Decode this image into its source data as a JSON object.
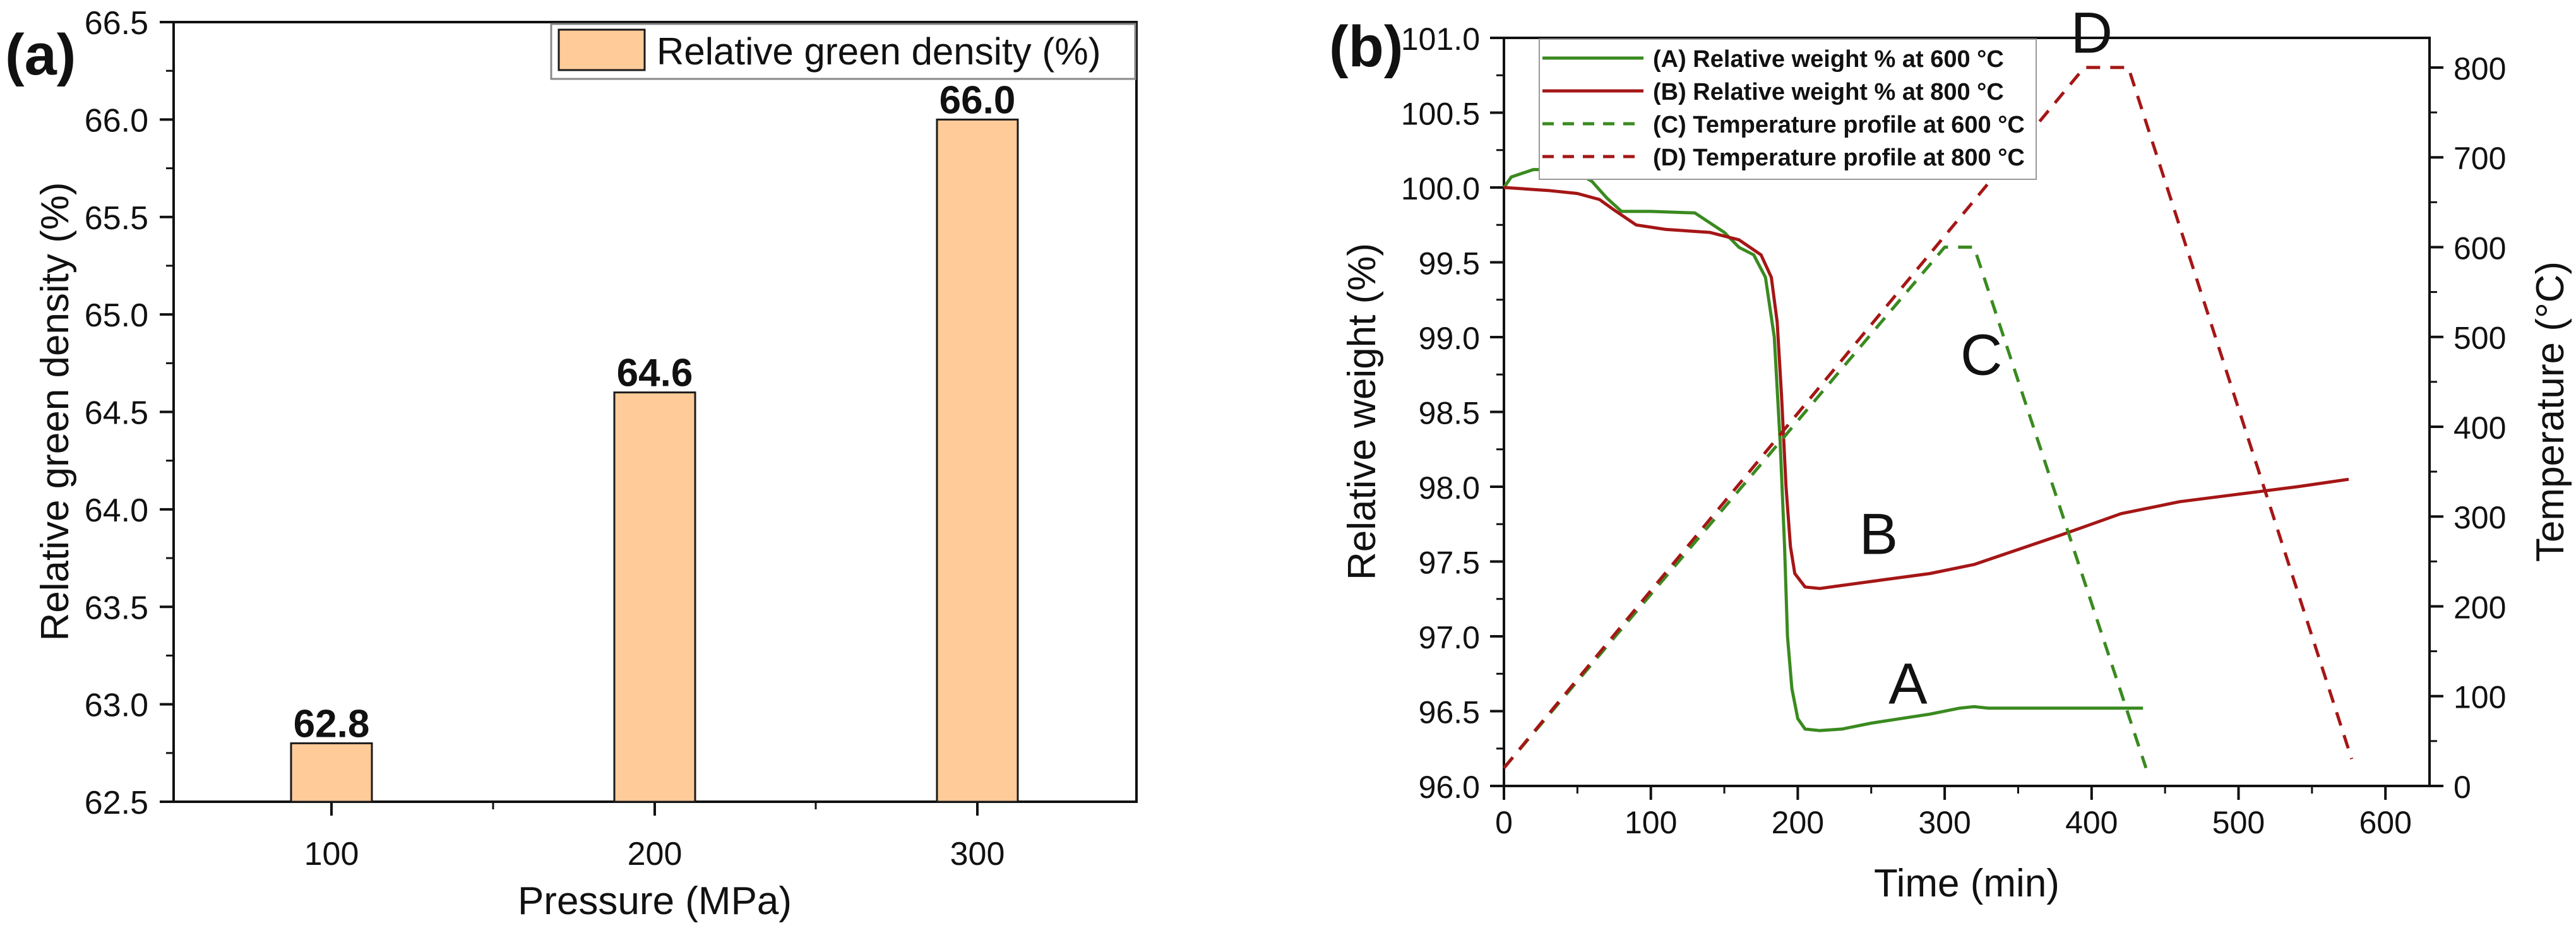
{
  "panels": {
    "a": {
      "label": "(a)"
    },
    "b": {
      "label": "(b)"
    }
  },
  "colors": {
    "bar_fill": "#FFCC99",
    "bar_stroke": "#1a1a1a",
    "green": "#3A8A1F",
    "red": "#A51616"
  },
  "chart_data": [
    {
      "type": "bar",
      "panel": "(a)",
      "categories": [
        "100",
        "200",
        "300"
      ],
      "values": [
        62.8,
        64.6,
        66.0
      ],
      "data_labels": [
        "62.8",
        "64.6",
        "66.0"
      ],
      "xlabel": "Pressure (MPa)",
      "ylabel": "Relative green density (%)",
      "ylim": [
        62.5,
        66.5
      ],
      "yticks": [
        "62.5",
        "63.0",
        "63.5",
        "64.0",
        "64.5",
        "65.0",
        "65.5",
        "66.0",
        "66.5"
      ],
      "legend": {
        "position": "top-right",
        "entries": [
          "Relative green density (%)"
        ]
      },
      "grid": false
    },
    {
      "type": "line",
      "panel": "(b)",
      "xlabel": "Time (min)",
      "ylabel": "Relative weight (%)",
      "y2label": "Temperature (°C)",
      "xlim": [
        0,
        630
      ],
      "ylim": [
        96.0,
        101.0
      ],
      "y2lim": [
        0,
        833
      ],
      "xticks": [
        "0",
        "100",
        "200",
        "300",
        "400",
        "500",
        "600"
      ],
      "yticks": [
        "96.0",
        "96.5",
        "97.0",
        "97.5",
        "98.0",
        "98.5",
        "99.0",
        "99.5",
        "100.0",
        "100.5",
        "101.0"
      ],
      "y2ticks": [
        "0",
        "100",
        "200",
        "300",
        "400",
        "500",
        "600",
        "700",
        "800"
      ],
      "legend": {
        "position": "top-left"
      },
      "grid": false,
      "series": [
        {
          "name": "(A) Relative weight % at 600 °C",
          "axis": "left",
          "style": "solid",
          "color": "#3A8A1F",
          "tag": "A",
          "x": [
            0,
            5,
            20,
            35,
            50,
            60,
            70,
            80,
            100,
            130,
            150,
            160,
            170,
            178,
            184,
            188,
            191,
            193,
            196,
            200,
            205,
            215,
            230,
            250,
            270,
            290,
            310,
            320,
            330,
            340,
            380,
            420,
            435
          ],
          "y": [
            100.0,
            100.07,
            100.12,
            100.12,
            100.1,
            100.04,
            99.93,
            99.84,
            99.84,
            99.83,
            99.7,
            99.6,
            99.55,
            99.4,
            99.0,
            98.3,
            97.6,
            97.0,
            96.65,
            96.45,
            96.38,
            96.37,
            96.38,
            96.42,
            96.45,
            96.48,
            96.52,
            96.53,
            96.52,
            96.52,
            96.52,
            96.52,
            96.52
          ]
        },
        {
          "name": "(B) Relative weight % at 800 °C",
          "axis": "left",
          "style": "solid",
          "color": "#A51616",
          "tag": "B",
          "x": [
            0,
            30,
            50,
            65,
            75,
            90,
            110,
            140,
            160,
            175,
            182,
            186,
            189,
            192,
            195,
            198,
            205,
            215,
            230,
            260,
            290,
            320,
            350,
            380,
            420,
            460,
            500,
            540,
            575
          ],
          "y": [
            100.0,
            99.98,
            99.96,
            99.92,
            99.85,
            99.75,
            99.72,
            99.7,
            99.65,
            99.55,
            99.4,
            99.1,
            98.6,
            98.0,
            97.6,
            97.42,
            97.33,
            97.32,
            97.34,
            97.38,
            97.42,
            97.48,
            97.58,
            97.68,
            97.82,
            97.9,
            97.95,
            98.0,
            98.05
          ]
        },
        {
          "name": "(C) Temperature profile at 600 °C",
          "axis": "right",
          "style": "dashed",
          "color": "#3A8A1F",
          "tag": "C",
          "x": [
            0,
            300,
            320,
            437
          ],
          "y": [
            20,
            600,
            600,
            20
          ]
        },
        {
          "name": "(D) Temperature profile at 800 °C",
          "axis": "right",
          "style": "dashed",
          "color": "#A51616",
          "tag": "D",
          "x": [
            0,
            395,
            425,
            577
          ],
          "y": [
            20,
            800,
            800,
            30
          ]
        }
      ]
    }
  ]
}
